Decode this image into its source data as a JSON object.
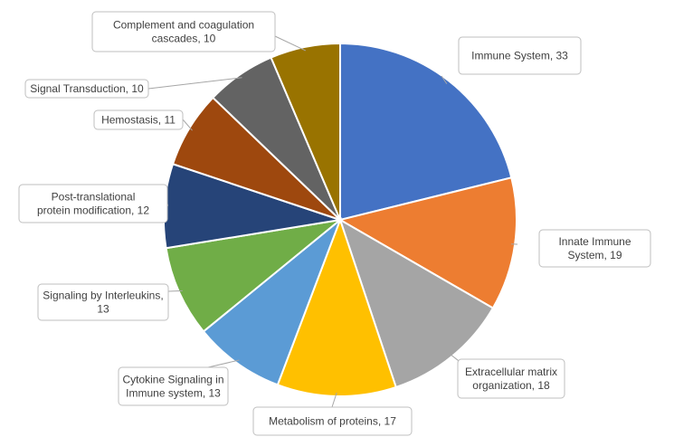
{
  "chart_data": {
    "type": "pie",
    "title": "",
    "legend": "none",
    "slices": [
      {
        "name": "Immune System",
        "value": 33,
        "label": "Immune System, 33",
        "color": "#4472C4"
      },
      {
        "name": "Innate Immune System",
        "value": 19,
        "label": "Innate Immune System, 19",
        "color": "#ED7D31"
      },
      {
        "name": "Extracellular matrix organization",
        "value": 18,
        "label": "Extracellular matrix organization, 18",
        "color": "#A5A5A5"
      },
      {
        "name": "Metabolism of proteins",
        "value": 17,
        "label": "Metabolism of proteins, 17",
        "color": "#FFC000"
      },
      {
        "name": "Cytokine Signaling in Immune system",
        "value": 13,
        "label": "Cytokine Signaling in Immune system, 13",
        "color": "#5B9BD5"
      },
      {
        "name": "Signaling by Interleukins",
        "value": 13,
        "label": "Signaling by Interleukins, 13",
        "color": "#70AD47"
      },
      {
        "name": "Post-translational protein modification",
        "value": 12,
        "label": "Post-translational protein modification, 12",
        "color": "#264478"
      },
      {
        "name": "Hemostasis",
        "value": 11,
        "label": "Hemostasis, 11",
        "color": "#9E480E"
      },
      {
        "name": "Signal Transduction",
        "value": 10,
        "label": "Signal Transduction, 10",
        "color": "#636363"
      },
      {
        "name": "Complement and coagulation cascades",
        "value": 10,
        "label": "Complement and coagulation cascades, 10",
        "color": "#997300"
      }
    ]
  }
}
